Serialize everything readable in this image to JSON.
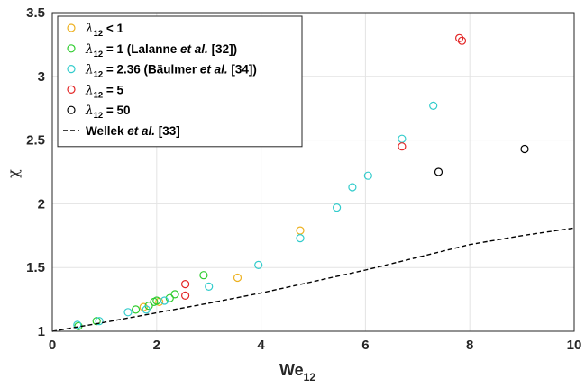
{
  "chart_data": {
    "type": "scatter",
    "xlabel": "We",
    "xlabel_sub": "12",
    "ylabel": "χ",
    "xlim": [
      0,
      10
    ],
    "ylim": [
      1,
      3.5
    ],
    "xticks": [
      "0",
      "2",
      "4",
      "6",
      "8",
      "10"
    ],
    "yticks": [
      "1",
      "1.5",
      "2",
      "2.5",
      "3",
      "3.5"
    ],
    "grid": true,
    "legend_position": "top-left",
    "series": [
      {
        "name": "λ12 < 1",
        "legend_parts": [
          "λ",
          "12",
          " < 1"
        ],
        "color": "#EDB120",
        "marker": "circle",
        "points": [
          [
            1.75,
            1.19
          ],
          [
            2.05,
            1.23
          ],
          [
            3.55,
            1.42
          ],
          [
            4.75,
            1.79
          ]
        ]
      },
      {
        "name": "λ12 = 1 (Lalanne et al. [32])",
        "legend_parts": [
          "λ",
          "12",
          " = 1 (Lalanne ",
          "et al.",
          " [32])"
        ],
        "color": "#2ECC2E",
        "marker": "circle",
        "points": [
          [
            0.5,
            1.04
          ],
          [
            0.85,
            1.08
          ],
          [
            1.6,
            1.17
          ],
          [
            1.85,
            1.2
          ],
          [
            1.95,
            1.23
          ],
          [
            2.0,
            1.24
          ],
          [
            2.25,
            1.26
          ],
          [
            2.35,
            1.29
          ],
          [
            2.9,
            1.44
          ]
        ]
      },
      {
        "name": "λ12 = 2.36 (Bäulmer et al. [34])",
        "legend_parts": [
          "λ",
          "12",
          " = 2.36 (Bäulmer ",
          "et al.",
          " [34])"
        ],
        "color": "#33CCCC",
        "marker": "circle",
        "points": [
          [
            0.48,
            1.05
          ],
          [
            0.9,
            1.08
          ],
          [
            1.45,
            1.15
          ],
          [
            1.8,
            1.17
          ],
          [
            2.15,
            1.24
          ],
          [
            3.0,
            1.35
          ],
          [
            3.95,
            1.52
          ],
          [
            4.75,
            1.73
          ],
          [
            5.45,
            1.97
          ],
          [
            5.75,
            2.13
          ],
          [
            6.05,
            2.22
          ],
          [
            6.7,
            2.51
          ],
          [
            7.3,
            2.77
          ]
        ]
      },
      {
        "name": "λ12 = 5",
        "legend_parts": [
          "λ",
          "12",
          " = 5"
        ],
        "color": "#E32626",
        "marker": "circle",
        "points": [
          [
            2.55,
            1.28
          ],
          [
            2.55,
            1.37
          ],
          [
            6.7,
            2.45
          ],
          [
            7.8,
            3.3
          ],
          [
            7.85,
            3.28
          ]
        ]
      },
      {
        "name": "λ12 = 50",
        "legend_parts": [
          "λ",
          "12",
          " = 50"
        ],
        "color": "#000000",
        "marker": "circle",
        "points": [
          [
            7.4,
            2.25
          ],
          [
            9.05,
            2.43
          ]
        ]
      },
      {
        "name": "Wellek et al. [33]",
        "legend_parts": [
          "Wellek ",
          "et al.",
          " [33]"
        ],
        "color": "#000000",
        "marker": "dashed-line",
        "points": [
          [
            0,
            1.0
          ],
          [
            1,
            1.07
          ],
          [
            2,
            1.145
          ],
          [
            3,
            1.22
          ],
          [
            4,
            1.3
          ],
          [
            5,
            1.39
          ],
          [
            6,
            1.48
          ],
          [
            7,
            1.58
          ],
          [
            8,
            1.68
          ],
          [
            9,
            1.75
          ],
          [
            10,
            1.81
          ]
        ]
      }
    ]
  }
}
